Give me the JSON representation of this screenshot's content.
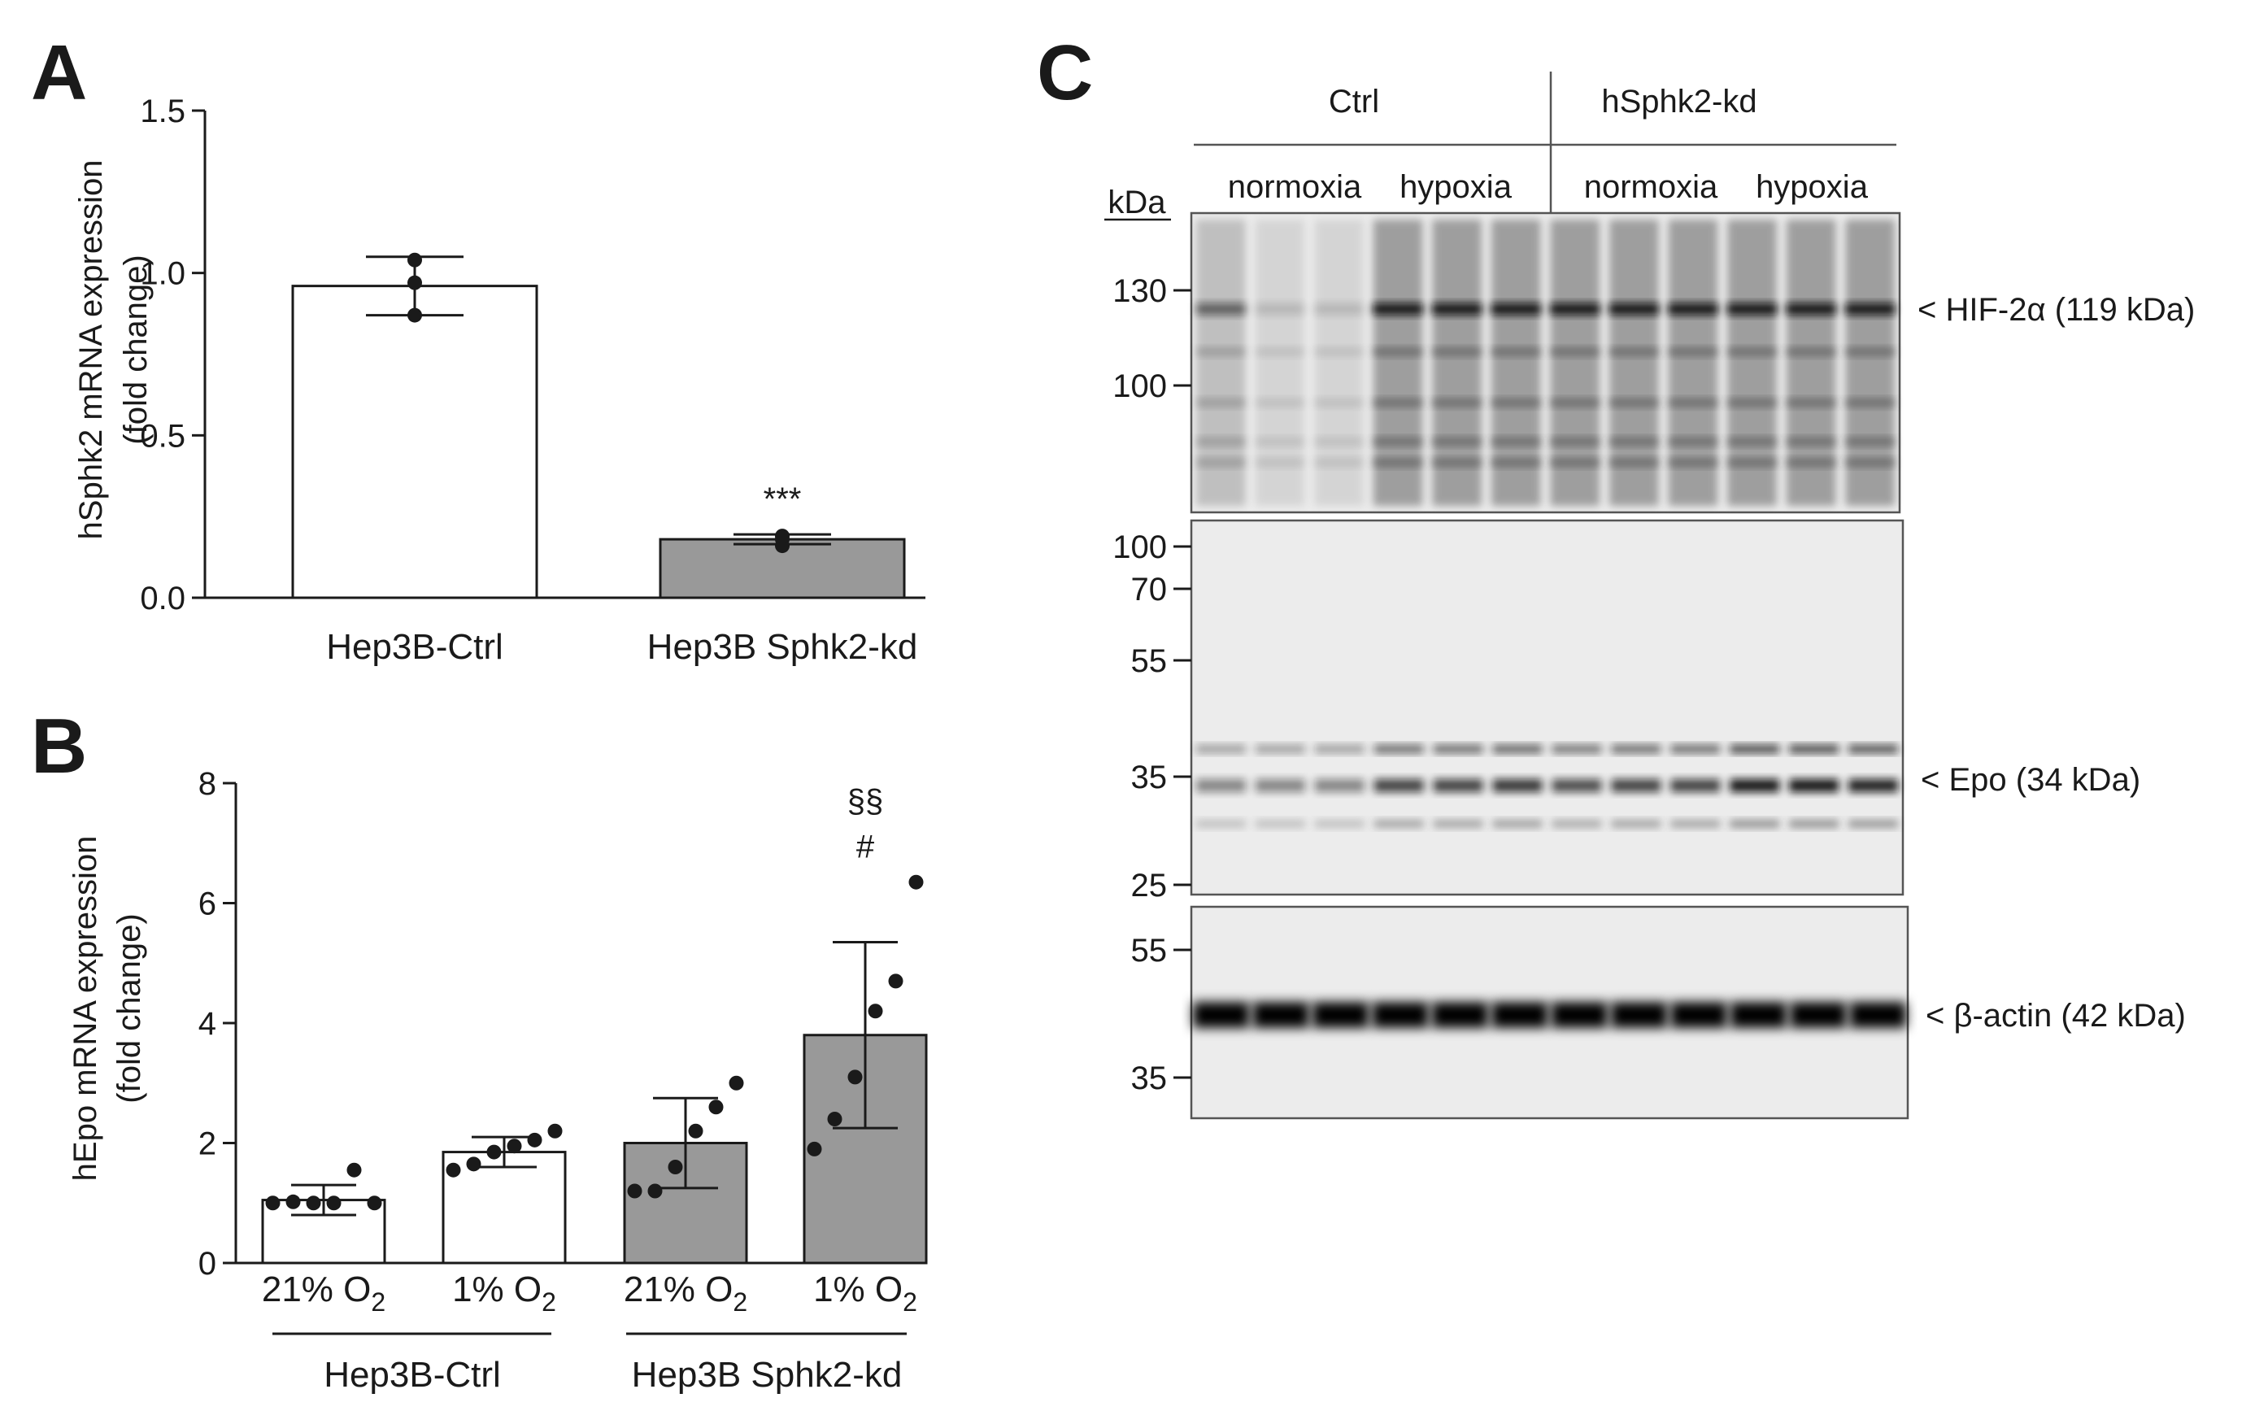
{
  "panels": {
    "A": "A",
    "B": "B",
    "C": "C"
  },
  "chart_data": [
    {
      "panel": "A",
      "type": "bar",
      "ylabel_line1": "hSphk2 mRNA expression",
      "ylabel_line2": "(fold change)",
      "ylim": [
        0,
        1.5
      ],
      "yticks": [
        "0.0",
        "0.5",
        "1.0",
        "1.5"
      ],
      "ytick_values": [
        0,
        0.5,
        1.0,
        1.5
      ],
      "categories": [
        "Hep3B-Ctrl",
        "Hep3B Sphk2-kd"
      ],
      "values": [
        0.96,
        0.18
      ],
      "errors": [
        0.09,
        0.015
      ],
      "points": [
        [
          0.87,
          0.97,
          1.04
        ],
        [
          0.16,
          0.18,
          0.19
        ]
      ],
      "bar_colors": [
        "#ffffff",
        "#999999"
      ],
      "annotations": [
        "",
        "***"
      ]
    },
    {
      "panel": "B",
      "type": "bar",
      "ylabel_line1": "hEpo mRNA expression",
      "ylabel_line2": "(fold change)",
      "ylim": [
        0,
        8
      ],
      "yticks": [
        "0",
        "2",
        "4",
        "6",
        "8"
      ],
      "ytick_values": [
        0,
        2,
        4,
        6,
        8
      ],
      "categories": [
        {
          "main": "21% O",
          "sub": "2"
        },
        {
          "main": "1% O",
          "sub": "2"
        },
        {
          "main": "21% O",
          "sub": "2"
        },
        {
          "main": "1% O",
          "sub": "2"
        }
      ],
      "values": [
        1.05,
        1.85,
        2.0,
        3.8
      ],
      "errors": [
        0.25,
        0.25,
        0.75,
        1.55
      ],
      "points": [
        [
          1.0,
          1.02,
          1.0,
          1.0,
          1.55,
          1.0
        ],
        [
          1.55,
          1.65,
          1.85,
          1.95,
          2.05,
          2.2
        ],
        [
          1.2,
          1.2,
          1.6,
          2.2,
          2.6,
          3.0
        ],
        [
          1.9,
          2.4,
          3.1,
          4.2,
          4.7,
          6.35
        ]
      ],
      "bar_colors": [
        "#ffffff",
        "#ffffff",
        "#999999",
        "#999999"
      ],
      "annotations": [
        "",
        "",
        "",
        "§§\n#"
      ],
      "groups": [
        "Hep3B-Ctrl",
        "Hep3B Sphk2-kd"
      ]
    }
  ],
  "western_blot": {
    "header_groups": [
      "Ctrl",
      "hSphk2-kd"
    ],
    "conditions": [
      "normoxia",
      "hypoxia",
      "normoxia",
      "hypoxia"
    ],
    "kda_label": "kDa",
    "blots": [
      {
        "markers": [
          "130",
          "100"
        ],
        "marker_values": [
          130,
          100
        ],
        "label": "< HIF-2α (119 kDa)",
        "band_intensity": [
          0.55,
          0.15,
          0.15,
          0.95,
          0.95,
          0.95,
          0.95,
          0.95,
          0.95,
          0.95,
          0.95,
          0.95
        ]
      },
      {
        "markers": [
          "100",
          "70",
          "55",
          "35",
          "25"
        ],
        "marker_values": [
          100,
          70,
          55,
          35,
          25
        ],
        "label": "< Epo (34 kDa)",
        "band_intensity": [
          0.45,
          0.45,
          0.45,
          0.75,
          0.75,
          0.8,
          0.7,
          0.75,
          0.75,
          0.95,
          0.95,
          0.9
        ]
      },
      {
        "markers": [
          "55",
          "35"
        ],
        "marker_values": [
          55,
          35
        ],
        "label": "< β-actin (42 kDa)",
        "band_intensity": [
          1,
          1,
          1,
          1,
          1,
          1,
          1,
          1,
          1,
          1,
          1,
          1
        ]
      }
    ]
  }
}
